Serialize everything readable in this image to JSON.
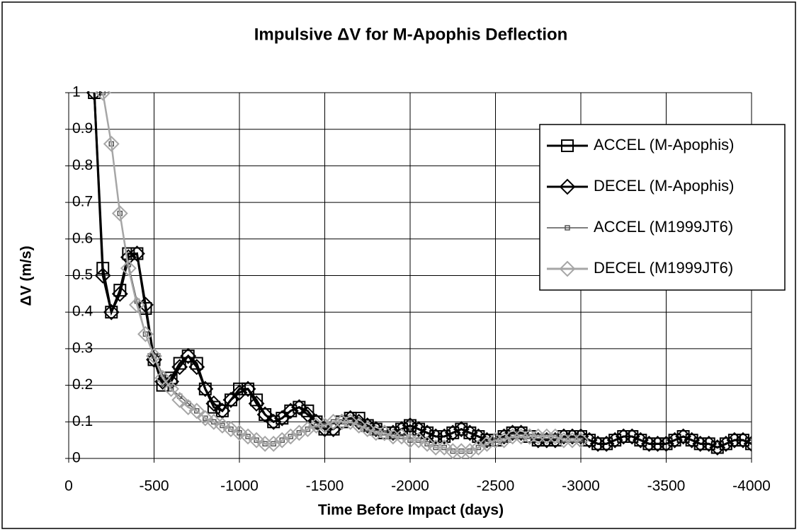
{
  "chart_data": {
    "type": "line",
    "title": "Impulsive ΔV for M-Apophis Deflection",
    "x_label": "Time Before Impact  (days)",
    "y_label": "ΔV (m/s)",
    "x": [
      -150,
      -200,
      -250,
      -300,
      -350,
      -400,
      -450,
      -500,
      -550,
      -600,
      -650,
      -700,
      -750,
      -800,
      -850,
      -900,
      -950,
      -1000,
      -1050,
      -1100,
      -1150,
      -1200,
      -1250,
      -1300,
      -1350,
      -1400,
      -1450,
      -1500,
      -1550,
      -1600,
      -1650,
      -1700,
      -1750,
      -1800,
      -1850,
      -1900,
      -1950,
      -2000,
      -2050,
      -2100,
      -2150,
      -2200,
      -2250,
      -2300,
      -2350,
      -2400,
      -2450,
      -2500,
      -2550,
      -2600,
      -2650,
      -2700,
      -2750,
      -2800,
      -2850,
      -2900,
      -2950,
      -3000,
      -3050,
      -3100,
      -3150,
      -3200,
      -3250,
      -3300,
      -3350,
      -3400,
      -3450,
      -3500,
      -3550,
      -3600,
      -3650,
      -3700,
      -3750,
      -3800,
      -3850,
      -3900,
      -3950,
      -4000
    ],
    "series": [
      {
        "name": "ACCEL (M-Apophis)",
        "color": "#000000",
        "marker": "square",
        "values": [
          1.0,
          0.52,
          0.4,
          0.46,
          0.56,
          0.56,
          0.41,
          0.27,
          0.2,
          0.22,
          0.26,
          0.28,
          0.26,
          0.19,
          0.14,
          0.13,
          0.16,
          0.19,
          0.19,
          0.16,
          0.12,
          0.1,
          0.11,
          0.13,
          0.14,
          0.13,
          0.1,
          0.08,
          0.08,
          0.1,
          0.11,
          0.11,
          0.09,
          0.08,
          0.07,
          0.07,
          0.08,
          0.09,
          0.08,
          0.07,
          0.06,
          0.06,
          0.07,
          0.08,
          0.07,
          0.06,
          0.05,
          0.05,
          0.06,
          0.07,
          0.07,
          0.06,
          0.05,
          0.05,
          0.05,
          0.06,
          0.06,
          0.06,
          0.05,
          0.04,
          0.04,
          0.05,
          0.06,
          0.06,
          0.05,
          0.04,
          0.04,
          0.04,
          0.05,
          0.06,
          0.05,
          0.04,
          0.04,
          0.03,
          0.04,
          0.05,
          0.05,
          0.04
        ]
      },
      {
        "name": "DECEL (M-Apophis)",
        "color": "#000000",
        "marker": "diamond",
        "values": [
          1.0,
          0.5,
          0.4,
          0.45,
          0.55,
          0.56,
          0.42,
          0.27,
          0.21,
          0.21,
          0.25,
          0.28,
          0.25,
          0.19,
          0.15,
          0.13,
          0.16,
          0.18,
          0.19,
          0.15,
          0.12,
          0.1,
          0.11,
          0.13,
          0.14,
          0.12,
          0.1,
          0.08,
          0.08,
          0.1,
          0.11,
          0.1,
          0.09,
          0.08,
          0.07,
          0.07,
          0.08,
          0.09,
          0.08,
          0.07,
          0.06,
          0.06,
          0.07,
          0.08,
          0.07,
          0.06,
          0.05,
          0.05,
          0.06,
          0.07,
          0.07,
          0.06,
          0.05,
          0.05,
          0.05,
          0.06,
          0.06,
          0.06,
          0.05,
          0.04,
          0.04,
          0.05,
          0.06,
          0.06,
          0.05,
          0.04,
          0.04,
          0.04,
          0.05,
          0.06,
          0.05,
          0.04,
          0.04,
          0.03,
          0.04,
          0.05,
          0.05,
          0.04
        ]
      },
      {
        "name": "ACCEL (M1999JT6)",
        "color": "#555555",
        "marker": "small-square",
        "values": [
          null,
          1.0,
          0.86,
          0.67,
          0.53,
          0.43,
          0.34,
          0.28,
          0.23,
          0.19,
          0.17,
          0.15,
          0.13,
          0.11,
          0.1,
          0.09,
          0.08,
          0.07,
          0.06,
          0.05,
          0.04,
          0.04,
          0.05,
          0.06,
          0.07,
          0.08,
          0.09,
          0.09,
          0.1,
          0.1,
          0.1,
          0.09,
          0.08,
          0.07,
          0.07,
          0.06,
          0.06,
          0.05,
          0.05,
          0.04,
          0.03,
          0.03,
          0.02,
          0.02,
          0.02,
          0.03,
          0.04,
          0.05,
          0.05,
          0.06,
          0.06,
          0.06,
          0.06,
          0.06,
          0.06,
          0.05,
          0.05,
          0.05,
          null,
          null,
          null,
          null,
          null,
          null,
          null,
          null,
          null,
          null,
          null,
          null,
          null,
          null,
          null,
          null,
          null,
          null,
          null,
          null
        ]
      },
      {
        "name": "DECEL (M1999JT6)",
        "color": "#a6a6a6",
        "marker": "diamond",
        "values": [
          null,
          1.0,
          0.86,
          0.67,
          0.52,
          0.42,
          0.34,
          0.28,
          0.22,
          0.19,
          0.16,
          0.14,
          0.13,
          0.11,
          0.1,
          0.09,
          0.08,
          0.07,
          0.06,
          0.05,
          0.04,
          0.04,
          0.05,
          0.06,
          0.07,
          0.08,
          0.09,
          0.09,
          0.1,
          0.1,
          0.1,
          0.09,
          0.08,
          0.07,
          0.07,
          0.06,
          0.06,
          0.05,
          0.05,
          0.04,
          0.03,
          0.03,
          0.02,
          0.02,
          0.02,
          0.03,
          0.04,
          0.05,
          0.05,
          0.06,
          0.06,
          0.06,
          0.06,
          0.06,
          0.06,
          0.05,
          0.05,
          0.05,
          null,
          null,
          null,
          null,
          null,
          null,
          null,
          null,
          null,
          null,
          null,
          null,
          null,
          null,
          null,
          null,
          null,
          null,
          null,
          null
        ]
      }
    ],
    "xlim": [
      0,
      -4000
    ],
    "xticks": [
      0,
      -500,
      -1000,
      -1500,
      -2000,
      -2500,
      -3000,
      -3500,
      -4000
    ],
    "ylim": [
      0,
      1
    ],
    "yticks": [
      0,
      0.1,
      0.2,
      0.3,
      0.4,
      0.5,
      0.6,
      0.7,
      0.8,
      0.9,
      1
    ],
    "grid": true,
    "legend": "right"
  }
}
